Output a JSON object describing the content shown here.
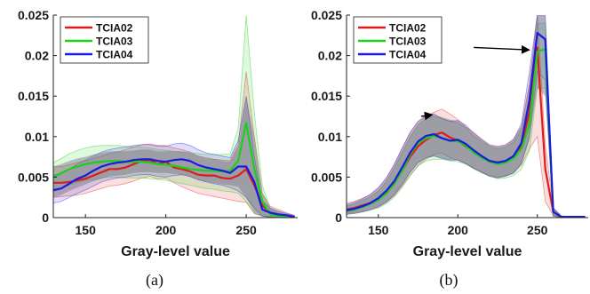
{
  "chart_data": [
    {
      "type": "line",
      "panel_label": "(a)",
      "xlabel": "Gray-level value",
      "ylabel": "",
      "xlim": [
        130,
        282
      ],
      "ylim": [
        0,
        0.025
      ],
      "xticks": [
        150,
        200,
        250
      ],
      "yticks": [
        0,
        0.005,
        0.01,
        0.015,
        0.02,
        0.025
      ],
      "ytick_labels": [
        "0",
        "0.005",
        "0.01",
        "0.015",
        "0.02",
        "0.025"
      ],
      "legend_position": "top-left",
      "x": [
        130,
        135,
        140,
        145,
        150,
        155,
        160,
        165,
        170,
        175,
        180,
        185,
        190,
        195,
        200,
        205,
        210,
        215,
        220,
        225,
        230,
        235,
        240,
        245,
        250,
        255,
        260,
        265,
        270,
        275,
        280
      ],
      "series": [
        {
          "name": "TCIA02",
          "color": "#e01b1b",
          "values": [
            0.0043,
            0.0043,
            0.0044,
            0.0046,
            0.0048,
            0.0052,
            0.0056,
            0.006,
            0.006,
            0.0062,
            0.0066,
            0.007,
            0.0071,
            0.0066,
            0.0069,
            0.0062,
            0.006,
            0.0057,
            0.0053,
            0.0052,
            0.0052,
            0.0049,
            0.0048,
            0.0052,
            0.006,
            0.004,
            0.0015,
            0.0006,
            0.0004,
            0.0002,
            0.0001
          ],
          "band_upper": [
            0.0063,
            0.0063,
            0.0065,
            0.0068,
            0.007,
            0.0073,
            0.0076,
            0.0079,
            0.0081,
            0.0084,
            0.0087,
            0.009,
            0.0091,
            0.0089,
            0.0089,
            0.0086,
            0.0084,
            0.0081,
            0.0076,
            0.0074,
            0.0072,
            0.0071,
            0.007,
            0.009,
            0.018,
            0.01,
            0.003,
            0.0014,
            0.001,
            0.0006,
            0.0003
          ],
          "band_lower": [
            0.0025,
            0.0026,
            0.0027,
            0.0028,
            0.003,
            0.0033,
            0.0036,
            0.0039,
            0.004,
            0.0042,
            0.0045,
            0.0049,
            0.0051,
            0.0048,
            0.0049,
            0.0043,
            0.0038,
            0.0034,
            0.003,
            0.0028,
            0.0026,
            0.0024,
            0.0022,
            0.002,
            0.0019,
            0.0005,
            0.0002,
            0.0001,
            0,
            0,
            0
          ]
        },
        {
          "name": "TCIA03",
          "color": "#19d119",
          "values": [
            0.005,
            0.0055,
            0.006,
            0.0063,
            0.0066,
            0.0068,
            0.0069,
            0.007,
            0.007,
            0.0069,
            0.0069,
            0.0069,
            0.0068,
            0.0066,
            0.0065,
            0.0064,
            0.0062,
            0.006,
            0.0059,
            0.0058,
            0.0058,
            0.0057,
            0.0058,
            0.007,
            0.0117,
            0.006,
            0.002,
            0.0004,
            0.0002,
            0.0001,
            0.0001
          ],
          "band_upper": [
            0.0068,
            0.0073,
            0.0079,
            0.0083,
            0.0086,
            0.0088,
            0.0089,
            0.0089,
            0.0089,
            0.0088,
            0.0087,
            0.0087,
            0.0086,
            0.0084,
            0.0083,
            0.0082,
            0.0081,
            0.008,
            0.0079,
            0.0078,
            0.0078,
            0.0078,
            0.0079,
            0.011,
            0.0255,
            0.013,
            0.004,
            0.001,
            0.0005,
            0.0003,
            0.0002
          ],
          "band_lower": [
            0.0032,
            0.0036,
            0.004,
            0.0043,
            0.0046,
            0.0047,
            0.0049,
            0.005,
            0.005,
            0.0049,
            0.0049,
            0.0049,
            0.0048,
            0.0047,
            0.0046,
            0.0044,
            0.0042,
            0.004,
            0.0038,
            0.0036,
            0.0035,
            0.0033,
            0.0032,
            0.003,
            0.002,
            0.0005,
            0.0002,
            0,
            0,
            0,
            0
          ]
        },
        {
          "name": "TCIA04",
          "color": "#1a1ae0",
          "values": [
            0.0034,
            0.0036,
            0.0042,
            0.0048,
            0.0052,
            0.0058,
            0.0063,
            0.0066,
            0.0068,
            0.0069,
            0.0071,
            0.0072,
            0.0072,
            0.007,
            0.0069,
            0.0071,
            0.0072,
            0.007,
            0.0065,
            0.0062,
            0.006,
            0.0058,
            0.0055,
            0.0063,
            0.0063,
            0.0044,
            0.001,
            0.0006,
            0.0004,
            0.0003,
            0.0001
          ],
          "band_upper": [
            0.0052,
            0.0055,
            0.006,
            0.0066,
            0.0071,
            0.0076,
            0.0081,
            0.0084,
            0.0086,
            0.0087,
            0.0089,
            0.009,
            0.009,
            0.0088,
            0.0088,
            0.0091,
            0.0092,
            0.0089,
            0.0084,
            0.008,
            0.0078,
            0.0076,
            0.0074,
            0.0095,
            0.015,
            0.0075,
            0.002,
            0.0012,
            0.0008,
            0.0005,
            0.0002
          ],
          "band_lower": [
            0.0018,
            0.002,
            0.0025,
            0.003,
            0.0034,
            0.0039,
            0.0044,
            0.0047,
            0.0049,
            0.005,
            0.0052,
            0.0053,
            0.0053,
            0.0051,
            0.005,
            0.0052,
            0.0053,
            0.0051,
            0.0047,
            0.0044,
            0.0042,
            0.004,
            0.0037,
            0.0033,
            0.0025,
            0.0012,
            0.0002,
            0.0001,
            0,
            0,
            0
          ]
        }
      ],
      "pooled_band": {
        "color": "#6b6b78",
        "upper": [
          0.0063,
          0.0066,
          0.007,
          0.0073,
          0.0075,
          0.0078,
          0.008,
          0.0082,
          0.0082,
          0.0082,
          0.0083,
          0.0084,
          0.0084,
          0.0082,
          0.0082,
          0.0082,
          0.0082,
          0.008,
          0.0076,
          0.0073,
          0.0072,
          0.007,
          0.0069,
          0.0088,
          0.015,
          0.01,
          0.003,
          0.0012,
          0.0008,
          0.0005,
          0.0003
        ],
        "lower": [
          0.0025,
          0.0028,
          0.0033,
          0.0037,
          0.0041,
          0.0045,
          0.0048,
          0.0051,
          0.0052,
          0.0053,
          0.0055,
          0.0056,
          0.0056,
          0.0055,
          0.0055,
          0.0054,
          0.0053,
          0.005,
          0.0046,
          0.0044,
          0.0043,
          0.0041,
          0.004,
          0.0038,
          0.0025,
          0.0006,
          0.0002,
          0,
          0,
          0,
          0
        ]
      },
      "annotations": []
    },
    {
      "type": "line",
      "panel_label": "(b)",
      "xlabel": "Gray-level value",
      "ylabel": "",
      "xlim": [
        130,
        282
      ],
      "ylim": [
        0,
        0.025
      ],
      "xticks": [
        150,
        200,
        250
      ],
      "yticks": [
        0,
        0.005,
        0.01,
        0.015,
        0.02,
        0.025
      ],
      "ytick_labels": [
        "0",
        "0.005",
        "0.01",
        "0.015",
        "0.02",
        "0.025"
      ],
      "legend_position": "top-left",
      "x": [
        130,
        135,
        140,
        145,
        150,
        155,
        160,
        165,
        170,
        175,
        180,
        185,
        190,
        195,
        200,
        205,
        210,
        215,
        220,
        225,
        230,
        235,
        240,
        245,
        250,
        255,
        260,
        265,
        270,
        275,
        280
      ],
      "series": [
        {
          "name": "TCIA02",
          "color": "#e01b1b",
          "values": [
            0.001,
            0.0012,
            0.0015,
            0.0018,
            0.0023,
            0.003,
            0.0042,
            0.0058,
            0.0075,
            0.0088,
            0.0096,
            0.0102,
            0.0105,
            0.0099,
            0.0095,
            0.0088,
            0.0082,
            0.0075,
            0.007,
            0.0068,
            0.007,
            0.0075,
            0.0088,
            0.013,
            0.021,
            0.006,
            0.0007,
            0.0001,
            0.0001,
            0.0001,
            0.0001
          ],
          "band_upper": [
            0.0018,
            0.002,
            0.0024,
            0.0028,
            0.0036,
            0.0048,
            0.0065,
            0.0085,
            0.0105,
            0.0118,
            0.0125,
            0.013,
            0.0134,
            0.0128,
            0.0121,
            0.0112,
            0.0105,
            0.0097,
            0.009,
            0.0088,
            0.009,
            0.0097,
            0.0112,
            0.0165,
            0.026,
            0.009,
            0.0012,
            0.0002,
            0.0001,
            0.0001,
            0.0001
          ],
          "band_lower": [
            0.0005,
            0.0006,
            0.0008,
            0.001,
            0.0014,
            0.0019,
            0.0027,
            0.0039,
            0.0052,
            0.0064,
            0.0072,
            0.0078,
            0.008,
            0.0074,
            0.0071,
            0.0066,
            0.0061,
            0.0056,
            0.0052,
            0.005,
            0.0052,
            0.0055,
            0.0065,
            0.0085,
            0.01,
            0.002,
            0.0002,
            0,
            0,
            0,
            0
          ]
        },
        {
          "name": "TCIA03",
          "color": "#19d119",
          "values": [
            0.0008,
            0.001,
            0.0013,
            0.0017,
            0.0022,
            0.003,
            0.0042,
            0.0058,
            0.0078,
            0.0092,
            0.0098,
            0.0101,
            0.0098,
            0.0095,
            0.0094,
            0.0089,
            0.008,
            0.0074,
            0.0069,
            0.0066,
            0.0068,
            0.0073,
            0.0085,
            0.0115,
            0.0205,
            0.0208,
            0.0007,
            0.0001,
            0.0001,
            0.0001,
            0.0001
          ],
          "band_upper": [
            0.0014,
            0.0017,
            0.0021,
            0.0026,
            0.0033,
            0.0045,
            0.0061,
            0.008,
            0.01,
            0.0115,
            0.0122,
            0.0125,
            0.0122,
            0.0119,
            0.0117,
            0.0111,
            0.01,
            0.0094,
            0.0088,
            0.0085,
            0.0087,
            0.0093,
            0.0108,
            0.0145,
            0.024,
            0.024,
            0.0012,
            0.0002,
            0.0001,
            0.0001,
            0.0001
          ],
          "band_lower": [
            0.0004,
            0.0005,
            0.0007,
            0.0009,
            0.0012,
            0.0017,
            0.0025,
            0.0037,
            0.0052,
            0.0064,
            0.007,
            0.0072,
            0.0072,
            0.007,
            0.0069,
            0.0066,
            0.006,
            0.0055,
            0.0051,
            0.0048,
            0.0049,
            0.0052,
            0.006,
            0.0082,
            0.016,
            0.016,
            0.0002,
            0,
            0,
            0,
            0
          ]
        },
        {
          "name": "TCIA04",
          "color": "#1a1ae0",
          "values": [
            0.0009,
            0.0011,
            0.0014,
            0.0018,
            0.0024,
            0.0033,
            0.0045,
            0.0062,
            0.008,
            0.0094,
            0.0101,
            0.0103,
            0.0098,
            0.0095,
            0.0096,
            0.0091,
            0.0083,
            0.0076,
            0.007,
            0.0068,
            0.007,
            0.0076,
            0.0092,
            0.0145,
            0.0228,
            0.022,
            0.0007,
            0.0001,
            0.0001,
            0.0001,
            0.0001
          ],
          "band_upper": [
            0.0016,
            0.0019,
            0.0023,
            0.0029,
            0.0037,
            0.0049,
            0.0066,
            0.0086,
            0.0105,
            0.0119,
            0.0126,
            0.0128,
            0.0122,
            0.0119,
            0.012,
            0.0114,
            0.0104,
            0.0096,
            0.0089,
            0.0087,
            0.0089,
            0.0096,
            0.0116,
            0.018,
            0.0265,
            0.026,
            0.0012,
            0.0002,
            0.0001,
            0.0001,
            0.0001
          ],
          "band_lower": [
            0.0004,
            0.0005,
            0.0007,
            0.001,
            0.0013,
            0.0019,
            0.0028,
            0.0041,
            0.0056,
            0.0068,
            0.0074,
            0.0076,
            0.0073,
            0.0071,
            0.0071,
            0.0067,
            0.0061,
            0.0056,
            0.0051,
            0.0049,
            0.0051,
            0.0055,
            0.0067,
            0.01,
            0.018,
            0.017,
            0.0002,
            0,
            0,
            0,
            0
          ]
        }
      ],
      "pooled_band": {
        "color": "#6b6b78",
        "upper": [
          0.0015,
          0.0018,
          0.0022,
          0.0027,
          0.0034,
          0.0046,
          0.0063,
          0.0083,
          0.0102,
          0.0116,
          0.0124,
          0.0127,
          0.0124,
          0.0121,
          0.0119,
          0.0112,
          0.0103,
          0.0095,
          0.0088,
          0.0086,
          0.0088,
          0.0095,
          0.0112,
          0.0165,
          0.026,
          0.026,
          0.0012,
          0.0002,
          0.0001,
          0.0001,
          0.0001
        ],
        "lower": [
          0.0005,
          0.0006,
          0.0008,
          0.0011,
          0.0014,
          0.0019,
          0.0028,
          0.004,
          0.0055,
          0.0067,
          0.0073,
          0.0076,
          0.0073,
          0.0071,
          0.0071,
          0.0067,
          0.0061,
          0.0056,
          0.0052,
          0.0049,
          0.0051,
          0.0055,
          0.0066,
          0.0095,
          0.016,
          0.015,
          0.0002,
          0,
          0,
          0,
          0
        ]
      },
      "annotations": [
        {
          "type": "arrow",
          "from": [
            177,
            0.0125
          ],
          "to": [
            184,
            0.0127
          ]
        },
        {
          "type": "arrow",
          "from": [
            210,
            0.021
          ],
          "to": [
            245,
            0.0207
          ]
        }
      ]
    }
  ]
}
